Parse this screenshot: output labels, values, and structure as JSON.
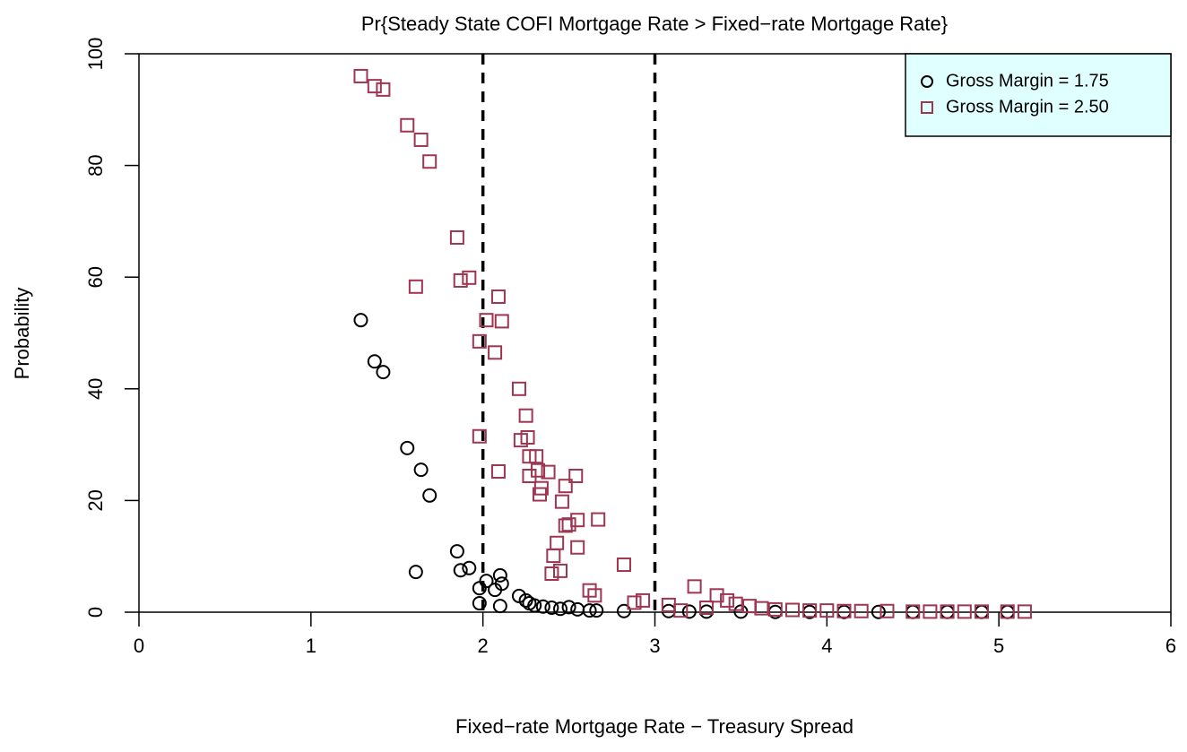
{
  "chart_data": {
    "type": "scatter",
    "title": "Pr{Steady State COFI Mortgage Rate > Fixed−rate Mortgage Rate}",
    "xlabel": "Fixed−rate Mortgage Rate − Treasury Spread",
    "ylabel": "Probability",
    "xlim": [
      0,
      6
    ],
    "ylim": [
      0,
      100
    ],
    "xticks": [
      0,
      1,
      2,
      3,
      4,
      5,
      6
    ],
    "yticks": [
      0,
      20,
      40,
      60,
      80,
      100
    ],
    "vlines": [
      2,
      3
    ],
    "legend_position": "top-right",
    "legend_background": "#e0ffff",
    "series": [
      {
        "name": "Gross Margin = 1.75",
        "color": "#000000",
        "marker": "circle",
        "x": [
          1.29,
          1.37,
          1.42,
          1.56,
          1.64,
          1.69,
          1.85,
          1.87,
          1.92,
          1.61,
          1.98,
          2.02,
          2.1,
          2.11,
          2.07,
          1.98,
          2.1,
          2.21,
          2.25,
          2.27,
          2.3,
          2.35,
          2.4,
          2.45,
          2.5,
          2.55,
          2.62,
          2.66,
          2.82,
          3.08,
          3.2,
          3.3,
          3.5,
          3.7,
          3.9,
          4.1,
          4.3,
          4.5,
          4.7,
          4.9,
          5.05
        ],
        "values": [
          52.3,
          44.9,
          43.0,
          29.4,
          25.5,
          20.9,
          10.9,
          7.5,
          7.9,
          7.2,
          4.3,
          5.6,
          6.6,
          5.1,
          4.0,
          1.6,
          1.1,
          2.9,
          2.1,
          1.6,
          1.2,
          1.0,
          0.8,
          0.6,
          0.9,
          0.5,
          0.3,
          0.3,
          0.2,
          0.2,
          0.1,
          0.1,
          0.1,
          0.05,
          0.05,
          0.05,
          0.05,
          0.05,
          0.05,
          0.05,
          0.05
        ]
      },
      {
        "name": "Gross Margin = 2.50",
        "color": "#9e3551",
        "marker": "square",
        "x": [
          1.29,
          1.37,
          1.42,
          1.56,
          1.64,
          1.69,
          1.85,
          1.61,
          1.87,
          1.92,
          2.09,
          2.02,
          2.11,
          1.98,
          2.07,
          1.98,
          2.21,
          2.25,
          2.22,
          2.26,
          2.27,
          2.31,
          2.09,
          2.32,
          2.38,
          2.27,
          2.54,
          2.34,
          2.48,
          2.33,
          2.46,
          2.48,
          2.55,
          2.67,
          2.5,
          2.43,
          2.55,
          2.41,
          2.4,
          2.45,
          2.82,
          2.62,
          3.23,
          2.65,
          3.36,
          2.93,
          3.42,
          2.88,
          3.08,
          3.47,
          3.55,
          3.3,
          3.62,
          3.7,
          3.8,
          3.9,
          4.0,
          4.1,
          4.2,
          4.35,
          4.5,
          4.6,
          4.7,
          4.8,
          4.9,
          5.05,
          5.15,
          3.15
        ],
        "values": [
          96.0,
          94.2,
          93.6,
          87.2,
          84.6,
          80.7,
          67.1,
          58.3,
          59.4,
          59.9,
          56.5,
          52.3,
          52.1,
          48.5,
          46.5,
          31.5,
          40.0,
          35.2,
          30.8,
          31.3,
          27.9,
          27.9,
          25.2,
          25.4,
          25.1,
          24.4,
          24.4,
          22.2,
          22.6,
          21.1,
          19.8,
          15.5,
          16.5,
          16.6,
          15.7,
          12.4,
          11.6,
          10.1,
          6.9,
          7.4,
          8.5,
          3.9,
          4.6,
          3.0,
          3.0,
          2.1,
          2.1,
          1.7,
          1.3,
          1.5,
          1.1,
          0.8,
          0.7,
          0.5,
          0.4,
          0.3,
          0.3,
          0.2,
          0.2,
          0.2,
          0.1,
          0.1,
          0.1,
          0.1,
          0.1,
          0.1,
          0.1,
          0.3
        ]
      }
    ]
  }
}
